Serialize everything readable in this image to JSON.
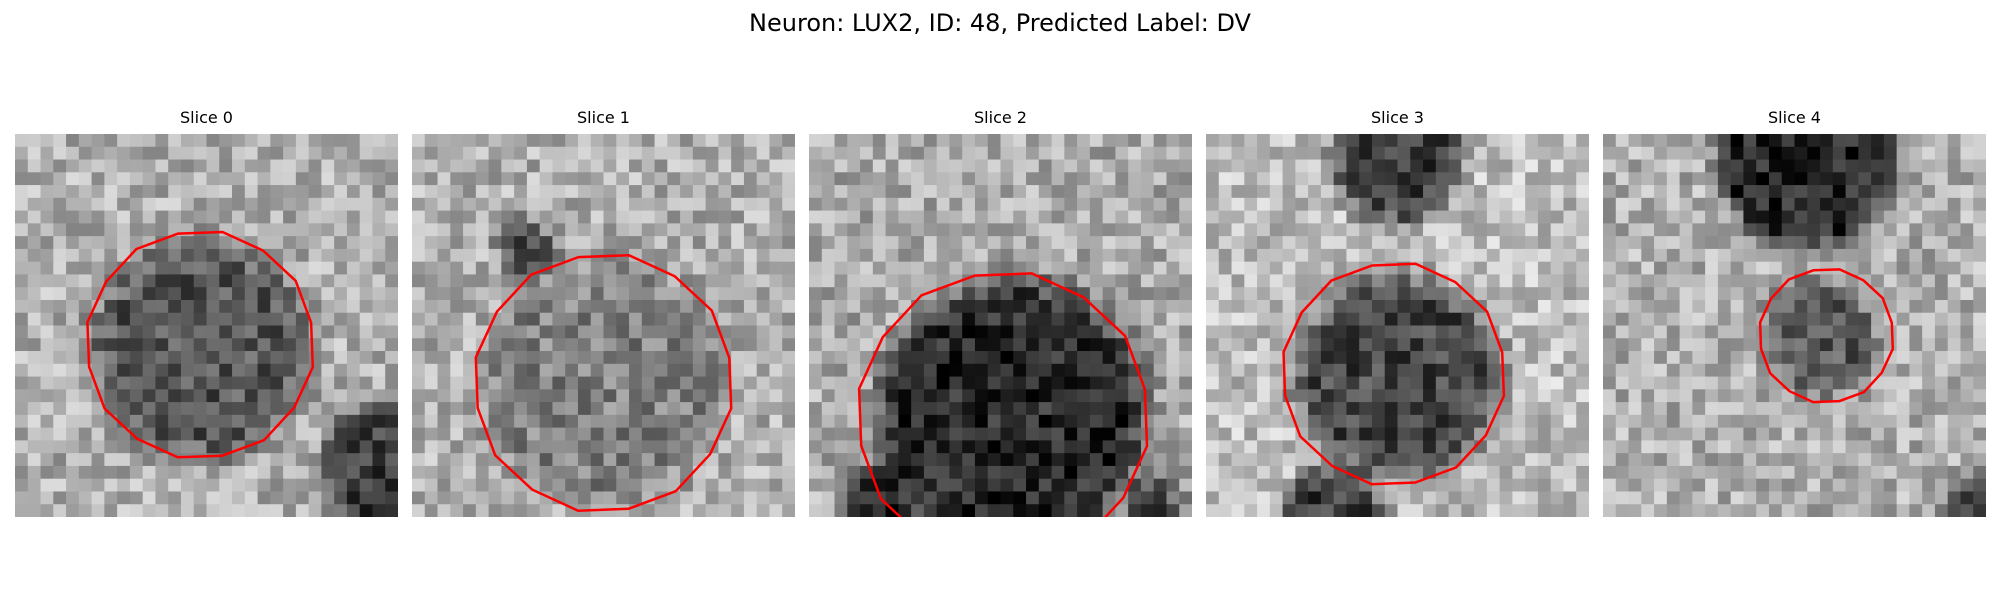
{
  "figure": {
    "title": "Neuron: LUX2, ID: 48, Predicted Label: DV"
  },
  "outline_color": "#ff0000",
  "slices": [
    {
      "title": "Slice 0",
      "image_description": "grayscale noisy pixel tile with dark roughly circular cell body and red octagonal ROI outline"
    },
    {
      "title": "Slice 1",
      "image_description": "grayscale noisy pixel tile with mid-gray cell body and large red octagonal ROI outline"
    },
    {
      "title": "Slice 2",
      "image_description": "grayscale noisy pixel tile with very dark cell body and large red octagonal ROI outline"
    },
    {
      "title": "Slice 3",
      "image_description": "grayscale noisy pixel tile with dark cell body, darker top region, and red octagonal ROI outline"
    },
    {
      "title": "Slice 4",
      "image_description": "grayscale noisy pixel tile with dark top region and small red octagonal ROI outline"
    }
  ]
}
